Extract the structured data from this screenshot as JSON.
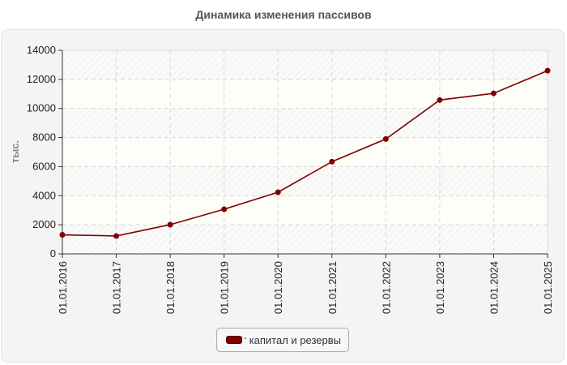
{
  "title": "Динамика изменения пассивов",
  "legend": {
    "entries": [
      {
        "label": "капитал и резервы",
        "color": "#800000"
      }
    ]
  },
  "chart_data": {
    "type": "line",
    "title": "Динамика изменения пассивов",
    "xlabel": "",
    "ylabel": "тыс.",
    "ylim": [
      0,
      14000
    ],
    "yticks": [
      0,
      2000,
      4000,
      6000,
      8000,
      10000,
      12000,
      14000
    ],
    "categories": [
      "01.01.2016",
      "01.01.2017",
      "01.01.2018",
      "01.01.2019",
      "01.01.2020",
      "01.01.2021",
      "01.01.2022",
      "01.01.2023",
      "01.01.2024",
      "01.01.2025"
    ],
    "series": [
      {
        "name": "капитал и резервы",
        "color": "#800000",
        "values": [
          1310,
          1230,
          2010,
          3070,
          4240,
          6340,
          7900,
          10580,
          11040,
          12600
        ]
      }
    ],
    "grid": true,
    "legend_position": "bottom"
  }
}
